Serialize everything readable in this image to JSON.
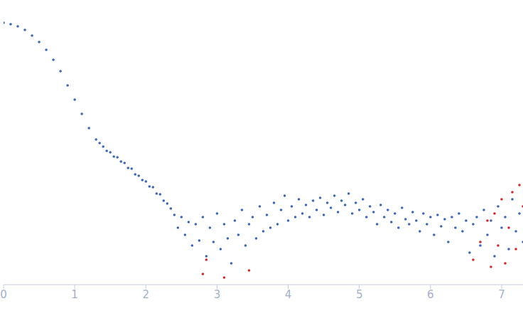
{
  "chart_data": {
    "type": "scatter",
    "xlim": [
      0,
      7.3
    ],
    "xticks": [
      0,
      1,
      2,
      3,
      4,
      5,
      6,
      7
    ],
    "ylim": [
      0,
      4
    ],
    "yticks": [
      1.7,
      2.7,
      3.7
    ],
    "tick_labels": "x",
    "series": [
      {
        "color": "#3b67b8",
        "x": [
          0,
          0.1,
          0.2,
          0.3,
          0.4,
          0.5,
          0.6,
          0.7,
          0.8,
          0.9,
          1.0,
          1.1,
          1.2,
          1.3,
          1.35,
          1.4,
          1.45,
          1.5,
          1.55,
          1.6,
          1.65,
          1.7,
          1.75,
          1.8,
          1.85,
          1.9,
          1.95,
          2.0,
          2.05,
          2.1,
          2.15,
          2.2,
          2.25,
          2.3,
          2.35,
          2.4,
          2.45,
          2.5,
          2.55,
          2.6,
          2.65,
          2.7,
          2.75,
          2.8,
          2.85,
          2.9,
          2.95,
          3.0,
          3.05,
          3.1,
          3.15,
          3.2,
          3.25,
          3.3,
          3.35,
          3.4,
          3.45,
          3.5,
          3.55,
          3.6,
          3.65,
          3.7,
          3.75,
          3.8,
          3.85,
          3.9,
          3.95,
          4.0,
          4.05,
          4.1,
          4.15,
          4.2,
          4.25,
          4.3,
          4.35,
          4.4,
          4.45,
          4.5,
          4.55,
          4.6,
          4.65,
          4.7,
          4.75,
          4.8,
          4.85,
          4.9,
          4.95,
          5.0,
          5.05,
          5.1,
          5.15,
          5.2,
          5.25,
          5.3,
          5.35,
          5.4,
          5.45,
          5.5,
          5.55,
          5.6,
          5.65,
          5.7,
          5.75,
          5.8,
          5.85,
          5.9,
          5.95,
          6.0,
          6.05,
          6.1,
          6.15,
          6.2,
          6.25,
          6.3,
          6.35,
          6.4,
          6.45,
          6.5,
          6.55,
          6.6,
          6.65,
          6.7,
          6.75,
          6.8,
          6.85,
          6.9,
          6.95,
          7.0,
          7.05,
          7.1,
          7.15,
          7.2,
          7.25,
          7.3
        ],
        "values": [
          3.68,
          3.66,
          3.63,
          3.58,
          3.5,
          3.41,
          3.3,
          3.16,
          3.0,
          2.8,
          2.6,
          2.4,
          2.2,
          2.04,
          1.99,
          1.94,
          1.88,
          1.86,
          1.8,
          1.79,
          1.73,
          1.71,
          1.64,
          1.63,
          1.55,
          1.53,
          1.47,
          1.45,
          1.38,
          1.37,
          1.28,
          1.27,
          1.18,
          1.14,
          1.07,
          0.98,
          0.8,
          0.95,
          0.7,
          0.88,
          0.55,
          0.85,
          0.62,
          0.95,
          0.4,
          0.8,
          0.6,
          1.0,
          0.5,
          0.85,
          0.65,
          0.3,
          0.9,
          0.7,
          1.05,
          0.55,
          0.85,
          0.95,
          0.65,
          1.1,
          0.75,
          0.98,
          0.8,
          1.15,
          0.85,
          1.05,
          1.25,
          0.9,
          1.1,
          0.95,
          1.2,
          1.0,
          1.12,
          0.95,
          1.18,
          1.05,
          1.22,
          0.98,
          1.15,
          1.08,
          1.25,
          1.02,
          1.18,
          1.12,
          1.28,
          1.0,
          1.15,
          1.05,
          1.2,
          0.95,
          1.1,
          1.02,
          0.85,
          1.12,
          0.95,
          1.05,
          0.88,
          1.0,
          0.8,
          1.08,
          0.92,
          0.85,
          1.02,
          0.9,
          0.75,
          1.0,
          0.85,
          0.95,
          0.7,
          0.98,
          0.82,
          0.92,
          0.6,
          0.95,
          0.8,
          1.0,
          0.75,
          0.9,
          0.45,
          0.85,
          0.95,
          0.55,
          1.05,
          0.7,
          0.9,
          0.4,
          1.1,
          0.8,
          0.95,
          0.5,
          1.2,
          0.75,
          1.0,
          0.6
        ]
      },
      {
        "color": "#d62728",
        "x": [
          2.8,
          2.85,
          3.1,
          3.45,
          6.6,
          6.7,
          6.8,
          6.85,
          6.9,
          6.95,
          7.0,
          7.05,
          7.1,
          7.15,
          7.2,
          7.25,
          7.3
        ],
        "values": [
          0.15,
          0.35,
          0.1,
          0.2,
          0.35,
          0.6,
          0.9,
          0.25,
          1.0,
          0.55,
          1.2,
          0.3,
          0.8,
          1.3,
          0.5,
          1.4,
          1.1
        ]
      }
    ]
  }
}
